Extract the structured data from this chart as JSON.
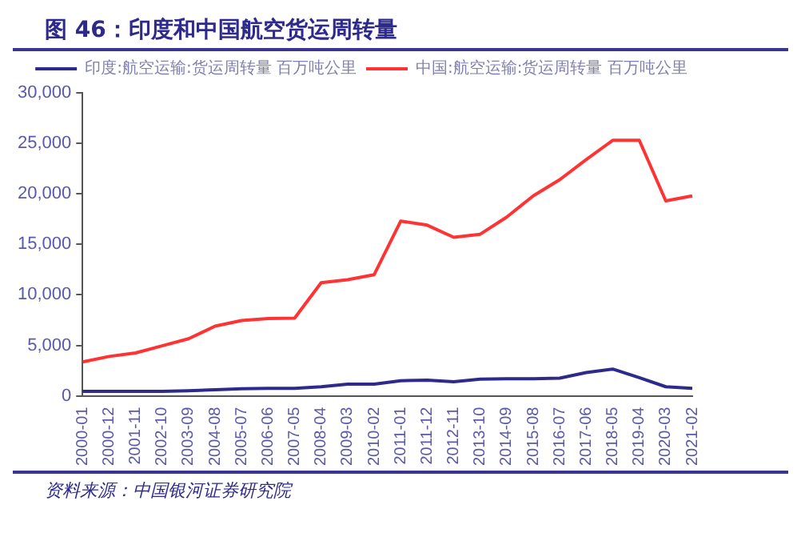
{
  "chart_data": {
    "type": "line",
    "title": "图 46：印度和中国航空货运周转量",
    "categories": [
      "2000-01",
      "2000-12",
      "2001-11",
      "2002-10",
      "2003-09",
      "2004-08",
      "2005-07",
      "2006-06",
      "2007-05",
      "2008-04",
      "2009-03",
      "2010-02",
      "2011-01",
      "2011-12",
      "2012-11",
      "2013-10",
      "2014-09",
      "2015-08",
      "2016-07",
      "2017-06",
      "2018-05",
      "2019-04",
      "2020-03",
      "2021-02"
    ],
    "series": [
      {
        "name": "印度:航空运输:货运周转量 百万吨公里",
        "color": "#2e2a8c",
        "values": [
          450,
          450,
          450,
          450,
          500,
          600,
          700,
          750,
          750,
          900,
          1150,
          1150,
          1500,
          1550,
          1400,
          1650,
          1700,
          1700,
          1750,
          2300,
          2650,
          1800,
          900,
          750
        ]
      },
      {
        "name": "中国:航空运输:货运周转量 百万吨公里",
        "color": "#ff3333",
        "values": [
          3350,
          3900,
          4250,
          4950,
          5650,
          6900,
          7450,
          7650,
          7700,
          11200,
          11500,
          12000,
          17300,
          16900,
          15700,
          16000,
          17700,
          19800,
          21400,
          23400,
          25300,
          25300,
          19300,
          19800
        ]
      }
    ],
    "ylim": [
      0,
      30000
    ],
    "yticks": [
      0,
      {
        "value": 5000,
        "label": "5,000"
      },
      {
        "value": 10000,
        "label": "10,000"
      },
      {
        "value": 15000,
        "label": "15,000"
      },
      {
        "value": 20000,
        "label": "20,000"
      },
      {
        "value": 25000,
        "label": "25,000"
      },
      {
        "value": 30000,
        "label": "30,000"
      }
    ],
    "grid": false,
    "legend": "top",
    "marker": "none",
    "line_style": "solid",
    "annotations": [
      "资料来源：中国银河证券研究院"
    ]
  }
}
